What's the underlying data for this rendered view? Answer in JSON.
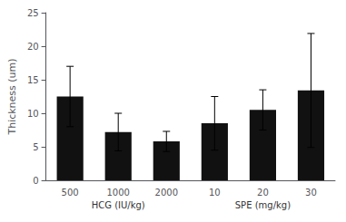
{
  "chart_data": {
    "type": "bar",
    "categories": [
      "500",
      "1000",
      "2000",
      "10",
      "20",
      "30"
    ],
    "values": [
      12.5,
      7.2,
      5.8,
      8.5,
      10.5,
      13.4
    ],
    "errors": [
      4.5,
      2.8,
      1.5,
      4.0,
      3.0,
      8.5
    ],
    "color": "#111111",
    "ylabel": "Thickness (um)",
    "ylim": [
      0,
      25
    ],
    "yticks": [
      0,
      5,
      10,
      15,
      20,
      25
    ],
    "grid": false,
    "annotations": [
      {
        "text": "HCG (IU/kg)",
        "categories": [
          "500",
          "1000",
          "2000"
        ]
      },
      {
        "text": "SPE (mg/kg)",
        "categories": [
          "10",
          "20",
          "30"
        ]
      }
    ]
  }
}
